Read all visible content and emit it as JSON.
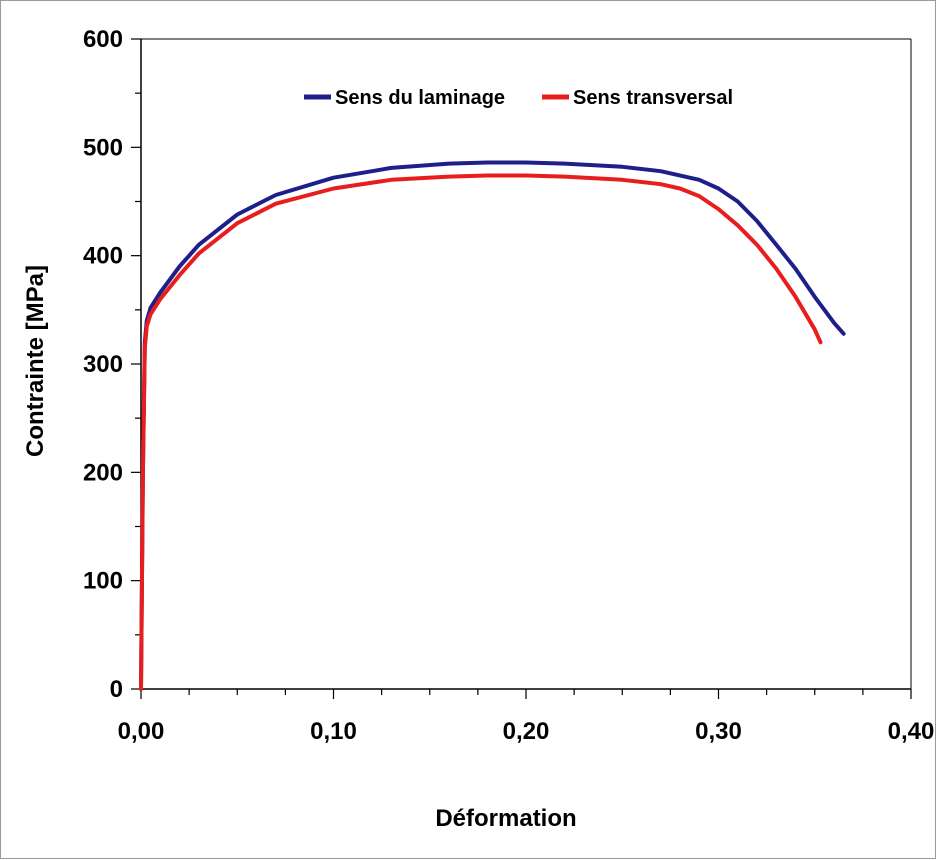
{
  "chart_data": {
    "type": "line",
    "xlabel": "Déformation",
    "ylabel": "Contrainte [MPa]",
    "xlim": [
      0,
      0.4
    ],
    "ylim": [
      0,
      600
    ],
    "x_ticks": [
      0,
      0.1,
      0.2,
      0.3,
      0.4
    ],
    "x_tick_labels": [
      "0,00",
      "0,10",
      "0,20",
      "0,30",
      "0,40"
    ],
    "y_ticks": [
      0,
      100,
      200,
      300,
      400,
      500,
      600
    ],
    "y_tick_labels": [
      "0",
      "100",
      "200",
      "300",
      "400",
      "500",
      "600"
    ],
    "grid": false,
    "legend_position": "top-center",
    "series": [
      {
        "name": "Sens du laminage",
        "color": "#1f1f8c",
        "x": [
          0,
          0.001,
          0.002,
          0.003,
          0.005,
          0.01,
          0.02,
          0.03,
          0.05,
          0.07,
          0.1,
          0.13,
          0.16,
          0.18,
          0.2,
          0.22,
          0.25,
          0.27,
          0.29,
          0.3,
          0.31,
          0.32,
          0.33,
          0.34,
          0.35,
          0.36,
          0.365
        ],
        "y": [
          0,
          200,
          320,
          340,
          352,
          366,
          390,
          410,
          438,
          456,
          472,
          481,
          485,
          486,
          486,
          485,
          482,
          478,
          470,
          462,
          450,
          432,
          410,
          388,
          362,
          338,
          328
        ]
      },
      {
        "name": "Sens transversal",
        "color": "#e81e1e",
        "x": [
          0,
          0.001,
          0.002,
          0.003,
          0.005,
          0.01,
          0.02,
          0.03,
          0.05,
          0.07,
          0.1,
          0.13,
          0.16,
          0.18,
          0.2,
          0.22,
          0.25,
          0.27,
          0.28,
          0.29,
          0.3,
          0.31,
          0.32,
          0.33,
          0.34,
          0.35,
          0.353
        ],
        "y": [
          0,
          200,
          315,
          335,
          346,
          360,
          382,
          402,
          430,
          448,
          462,
          470,
          473,
          474,
          474,
          473,
          470,
          466,
          462,
          455,
          443,
          428,
          410,
          388,
          362,
          332,
          320
        ]
      }
    ]
  }
}
